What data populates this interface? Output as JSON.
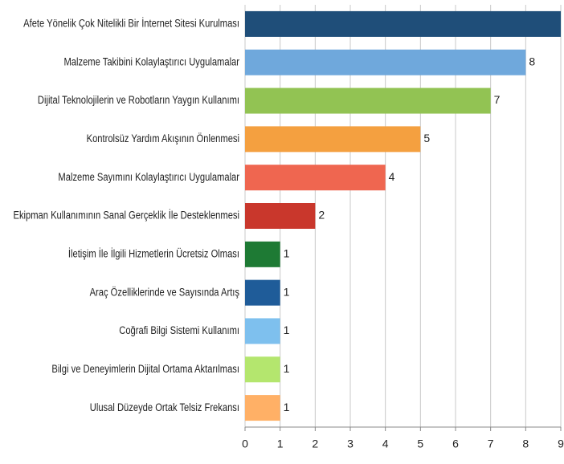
{
  "chart_data": {
    "type": "barh",
    "categories": [
      "Afete Yönelik Çok Nitelikli Bir İnternet Sitesi Kurulması",
      "Malzeme Takibini Kolaylaştırıcı Uygulamalar",
      "Dijital Teknolojilerin ve Robotların Yaygın Kullanımı",
      "Kontrolsüz Yardım Akışının Önlenmesi",
      "Malzeme Sayımını Kolaylaştırıcı Uygulamalar",
      "Ekipman Kullanımının Sanal Gerçeklik İle Desteklenmesi",
      "İletişim İle İlgili Hizmetlerin Ücretsiz Olması",
      "Araç Özelliklerinde ve Sayısında Artış",
      "Coğrafi Bilgi Sistemi Kullanımı",
      "Bilgi ve Deneyimlerin Dijital Ortama Aktarılması",
      "Ulusal Düzeyde Ortak Telsiz Frekansı"
    ],
    "values": [
      9,
      8,
      7,
      5,
      4,
      2,
      1,
      1,
      1,
      1,
      1
    ],
    "colors": [
      "#1f4e79",
      "#6fa8dc",
      "#92c353",
      "#f4a040",
      "#ef6650",
      "#c9372c",
      "#1e7a34",
      "#1f5c99",
      "#7ec0ee",
      "#b4e66e",
      "#ffb066"
    ],
    "xlim": [
      0,
      9
    ],
    "xticks": [
      0,
      1,
      2,
      3,
      4,
      5,
      6,
      7,
      8,
      9
    ],
    "grid": true
  }
}
